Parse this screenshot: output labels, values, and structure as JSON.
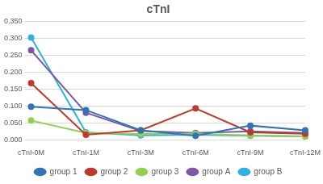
{
  "chart_data": {
    "type": "line",
    "title": "cTnI",
    "categories": [
      "cTnI-0M",
      "cTnI-1M",
      "cTnI-3M",
      "cTnI-6M",
      "cTnI-9M",
      "cTnI-12M"
    ],
    "series": [
      {
        "name": "group 1",
        "color": "#2e75b6",
        "values": [
          0.098,
          0.088,
          0.028,
          0.012,
          0.042,
          0.028
        ]
      },
      {
        "name": "group 2",
        "color": "#c0392b",
        "values": [
          0.168,
          0.015,
          0.028,
          0.093,
          0.022,
          0.018
        ]
      },
      {
        "name": "group 3",
        "color": "#92d050",
        "values": [
          0.057,
          0.02,
          0.017,
          0.018,
          0.013,
          0.01
        ]
      },
      {
        "name": "group A",
        "color": "#7e57a6",
        "values": [
          0.265,
          0.08,
          0.026,
          0.02,
          0.025,
          0.02
        ]
      },
      {
        "name": "group B",
        "color": "#2eb3e0",
        "values": [
          0.303,
          0.022,
          0.013,
          0.015,
          0.012,
          0.01
        ]
      }
    ],
    "ylim": [
      0,
      0.35
    ],
    "yticks": [
      {
        "value": 0,
        "label": "0.000"
      },
      {
        "value": 0.05,
        "label": "0.050"
      },
      {
        "value": 0.1,
        "label": "0.100"
      },
      {
        "value": 0.15,
        "label": "0.150"
      },
      {
        "value": 0.2,
        "label": "0.200"
      },
      {
        "value": 0.25,
        "label": "0.250"
      },
      {
        "value": 0.3,
        "label": "0.300"
      },
      {
        "value": 0.35,
        "label": "0.350"
      }
    ],
    "grid": true,
    "legend": "bottom",
    "marker": "circle",
    "line_style": "solid"
  }
}
